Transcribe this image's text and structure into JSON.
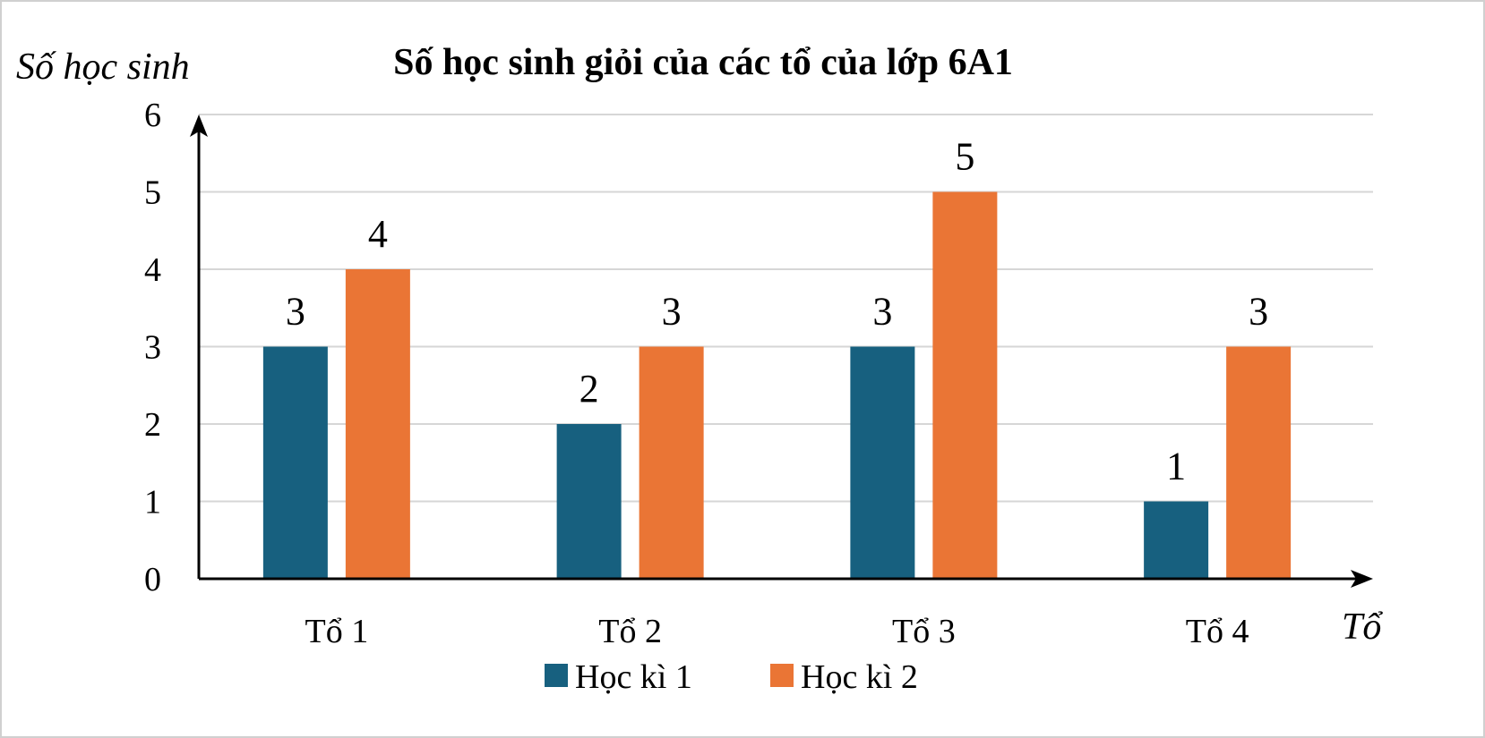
{
  "chart_data": {
    "type": "bar",
    "title": "Số học sinh giỏi của các tổ của lớp 6A1",
    "xlabel": "Tổ",
    "ylabel": "Số học sinh",
    "categories": [
      "Tổ 1",
      "Tổ 2",
      "Tổ 3",
      "Tổ 4"
    ],
    "series": [
      {
        "name": "Học kì 1",
        "color": "#17607F",
        "values": [
          3,
          2,
          3,
          1
        ]
      },
      {
        "name": "Học kì 2",
        "color": "#EA7535",
        "values": [
          4,
          3,
          5,
          3
        ]
      }
    ],
    "ylim": [
      0,
      6
    ],
    "yticks": [
      0,
      1,
      2,
      3,
      4,
      5,
      6
    ],
    "grid": true,
    "data_labels": true,
    "legend_position": "bottom"
  }
}
